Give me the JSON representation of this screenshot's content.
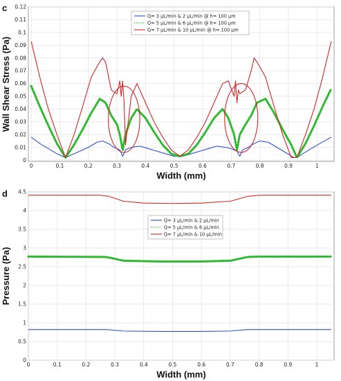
{
  "chart_data": [
    {
      "panel_label": "c",
      "type": "line",
      "xlabel": "Width (mm)",
      "ylabel": "Wall Shear Stress (Pa)",
      "xlim": [
        -0.01,
        1.06
      ],
      "ylim": [
        -0.001,
        0.12
      ],
      "xticks": [
        0,
        0.1,
        0.2,
        0.3,
        0.4,
        0.5,
        0.6,
        0.7,
        0.8,
        0.9,
        1
      ],
      "yticks": [
        0,
        0.01,
        0.02,
        0.03,
        0.04,
        0.05,
        0.06,
        0.07,
        0.08,
        0.09,
        0.1,
        0.11,
        0.12
      ],
      "grid": true,
      "legend_position": "top-center",
      "colors": {
        "blue": "#2b4fd6",
        "green": "#2fb82f",
        "red": "#d42424"
      },
      "series": [
        {
          "name": "Q= 3 μL/min & 2 μL/min @ h= 100 μm",
          "style": "solid-blue",
          "x": [
            0,
            0.03,
            0.06,
            0.09,
            0.12,
            0.14,
            0.17,
            0.2,
            0.23,
            0.25,
            0.27,
            0.29,
            0.31,
            0.32,
            0.33,
            0.35,
            0.38,
            0.41,
            0.44,
            0.47,
            0.5,
            0.53,
            0.56,
            0.59,
            0.62,
            0.65,
            0.68,
            0.7,
            0.72,
            0.73,
            0.74,
            0.76,
            0.78,
            0.8,
            0.83,
            0.86,
            0.89,
            0.92,
            0.93,
            0.95,
            0.98,
            1.01,
            1.05
          ],
          "y": [
            0.018,
            0.013,
            0.009,
            0.005,
            0.002,
            0.004,
            0.007,
            0.01,
            0.014,
            0.015,
            0.013,
            0.01,
            0.008,
            0.003,
            0.008,
            0.01,
            0.011,
            0.009,
            0.007,
            0.005,
            0.003,
            0.003,
            0.005,
            0.007,
            0.009,
            0.011,
            0.01,
            0.009,
            0.007,
            0.003,
            0.008,
            0.01,
            0.013,
            0.015,
            0.014,
            0.01,
            0.006,
            0.002,
            0.002,
            0.005,
            0.009,
            0.013,
            0.018
          ]
        },
        {
          "name": "Q= 5 μL/min & 6 μL/min @ h= 100 μm",
          "style": "dotted-green",
          "x": [
            0,
            0.03,
            0.06,
            0.09,
            0.12,
            0.15,
            0.18,
            0.21,
            0.24,
            0.26,
            0.28,
            0.3,
            0.31,
            0.32,
            0.33,
            0.35,
            0.37,
            0.4,
            0.43,
            0.46,
            0.49,
            0.52,
            0.55,
            0.58,
            0.61,
            0.64,
            0.67,
            0.69,
            0.71,
            0.72,
            0.73,
            0.75,
            0.77,
            0.79,
            0.82,
            0.85,
            0.88,
            0.91,
            0.93,
            0.96,
            0.99,
            1.02,
            1.05
          ],
          "y": [
            0.058,
            0.042,
            0.027,
            0.013,
            0.002,
            0.012,
            0.024,
            0.037,
            0.048,
            0.045,
            0.035,
            0.028,
            0.02,
            0.008,
            0.02,
            0.033,
            0.04,
            0.033,
            0.022,
            0.012,
            0.005,
            0.003,
            0.005,
            0.012,
            0.022,
            0.033,
            0.04,
            0.033,
            0.02,
            0.008,
            0.02,
            0.028,
            0.035,
            0.045,
            0.048,
            0.037,
            0.024,
            0.012,
            0.002,
            0.013,
            0.027,
            0.042,
            0.056
          ]
        },
        {
          "name": "Q= 7 μL/min & 10 μL/min @ h= 100 μm",
          "style": "solid-red",
          "x": [
            0,
            0.03,
            0.06,
            0.09,
            0.12,
            0.15,
            0.18,
            0.21,
            0.24,
            0.25,
            0.26,
            0.28,
            0.3,
            0.31,
            0.315,
            0.32,
            0.325,
            0.33,
            0.35,
            0.37,
            0.4,
            0.43,
            0.46,
            0.49,
            0.52,
            0.55,
            0.58,
            0.61,
            0.64,
            0.67,
            0.69,
            0.71,
            0.715,
            0.72,
            0.725,
            0.73,
            0.75,
            0.77,
            0.78,
            0.79,
            0.82,
            0.85,
            0.88,
            0.91,
            0.93,
            0.96,
            0.99,
            1.02,
            1.05
          ],
          "y": [
            0.093,
            0.065,
            0.04,
            0.02,
            0.002,
            0.02,
            0.042,
            0.065,
            0.077,
            0.08,
            0.077,
            0.055,
            0.052,
            0.062,
            0.05,
            0.062,
            0.045,
            0.012,
            0.05,
            0.06,
            0.045,
            0.03,
            0.018,
            0.008,
            0.003,
            0.008,
            0.018,
            0.03,
            0.045,
            0.06,
            0.062,
            0.05,
            0.062,
            0.045,
            0.055,
            0.052,
            0.055,
            0.07,
            0.08,
            0.077,
            0.065,
            0.042,
            0.02,
            0.002,
            0.002,
            0.02,
            0.04,
            0.065,
            0.093
          ]
        }
      ],
      "annotations": [
        {
          "shape": "ellipse",
          "color": "#d42424",
          "cx": 0.325,
          "cy": 0.032,
          "rx": 0.055,
          "ry": 0.026
        },
        {
          "shape": "ellipse",
          "color": "#d42424",
          "cx": 0.735,
          "cy": 0.033,
          "rx": 0.058,
          "ry": 0.027
        }
      ]
    },
    {
      "panel_label": "d",
      "type": "line",
      "xlabel": "Width (mm)",
      "ylabel": "Pressure (Pa)",
      "xlim": [
        0,
        1.06
      ],
      "ylim": [
        0,
        4.5
      ],
      "xticks": [
        0,
        0.1,
        0.2,
        0.3,
        0.4,
        0.5,
        0.6,
        0.7,
        0.8,
        0.9,
        1
      ],
      "yticks": [
        0,
        0.5,
        1,
        1.5,
        2,
        2.5,
        3,
        3.5,
        4,
        4.5
      ],
      "grid": true,
      "legend_position": "top-center",
      "colors": {
        "blue": "#2b4fd6",
        "green": "#2fb82f",
        "red": "#d42424"
      },
      "series": [
        {
          "name": "Q= 3 μL/min & 2 μL/min",
          "style": "solid-blue",
          "x": [
            0,
            0.27,
            0.33,
            0.45,
            0.6,
            0.7,
            0.76,
            0.8,
            1.05
          ],
          "y": [
            0.82,
            0.82,
            0.78,
            0.77,
            0.77,
            0.78,
            0.82,
            0.82,
            0.82
          ]
        },
        {
          "name": "Q= 5 μL/min & 6 μL/min",
          "style": "dotted-green",
          "x": [
            0,
            0.27,
            0.33,
            0.45,
            0.6,
            0.7,
            0.76,
            0.8,
            1.05
          ],
          "y": [
            2.77,
            2.76,
            2.66,
            2.64,
            2.64,
            2.66,
            2.76,
            2.77,
            2.77
          ]
        },
        {
          "name": "Q= 7 μL/min & 10 μL/min",
          "style": "solid-red",
          "x": [
            0,
            0.25,
            0.28,
            0.33,
            0.4,
            0.5,
            0.6,
            0.7,
            0.76,
            0.8,
            1.05
          ],
          "y": [
            4.41,
            4.41,
            4.38,
            4.25,
            4.2,
            4.19,
            4.2,
            4.25,
            4.38,
            4.41,
            4.41
          ]
        }
      ]
    }
  ]
}
